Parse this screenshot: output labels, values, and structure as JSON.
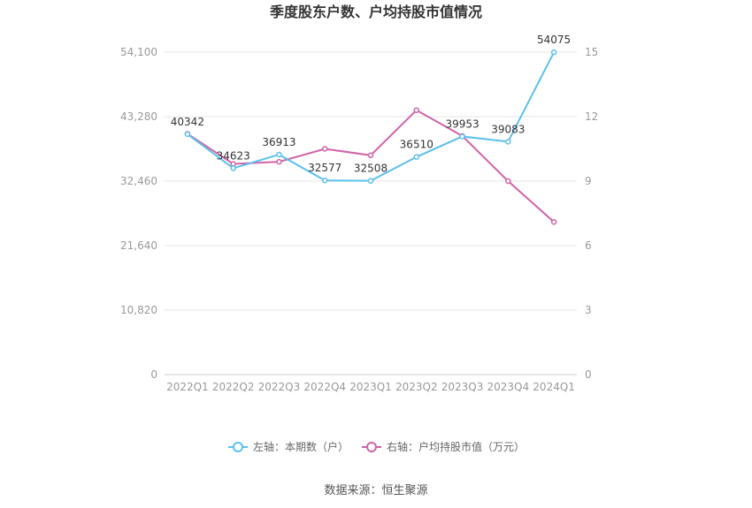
{
  "chart_data": {
    "type": "line",
    "title": "季度股东户数、户均持股市值情况",
    "categories": [
      "2022Q1",
      "2022Q2",
      "2022Q3",
      "2022Q4",
      "2023Q1",
      "2023Q2",
      "2023Q3",
      "2023Q4",
      "2024Q1"
    ],
    "series": [
      {
        "name": "左轴：本期数（户）",
        "axis": "left",
        "color": "#5bc0eb",
        "values": [
          40342,
          34623,
          36913,
          32577,
          32508,
          36510,
          39953,
          39083,
          54075
        ],
        "labels": [
          "40342",
          "34623",
          "36913",
          "32577",
          "32508",
          "36510",
          "39953",
          "39083",
          "54075"
        ]
      },
      {
        "name": "右轴：户均持股市值（万元）",
        "axis": "right",
        "color": "#d163a8",
        "values": [
          11.2,
          9.8,
          9.9,
          10.5,
          10.2,
          12.3,
          11.1,
          9.0,
          7.1
        ]
      }
    ],
    "y_left": {
      "ylim": [
        0,
        54100
      ],
      "ticks": [
        0,
        10820,
        21640,
        32460,
        43280,
        54100
      ],
      "tick_labels": [
        "0",
        "10,820",
        "21,640",
        "32,460",
        "43,280",
        "54,100"
      ]
    },
    "y_right": {
      "ylim": [
        0,
        15
      ],
      "ticks": [
        0,
        3,
        6,
        9,
        12,
        15
      ],
      "tick_labels": [
        "0",
        "3",
        "6",
        "9",
        "12",
        "15"
      ]
    },
    "grid": true,
    "legend_position": "bottom"
  },
  "source_text": "数据来源：恒生聚源"
}
